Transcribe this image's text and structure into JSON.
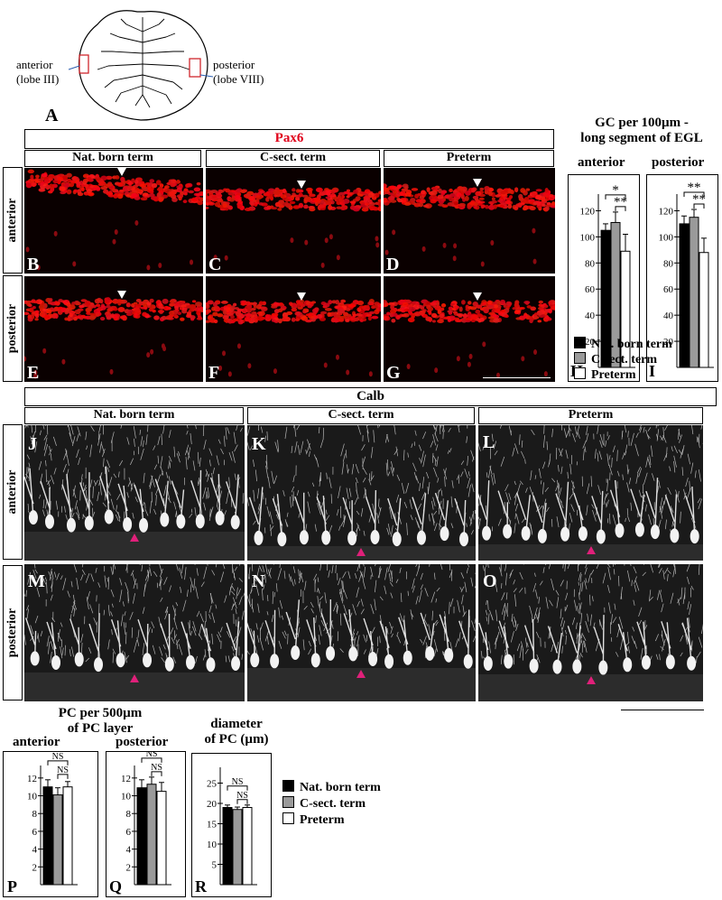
{
  "schematic": {
    "label_anterior_1": "anterior",
    "label_anterior_2": "(lobe III)",
    "label_posterior_1": "posterior",
    "label_posterior_2": "(lobe VIII)",
    "panel": "A"
  },
  "pax6": {
    "header": "Pax6",
    "header_color": "#e0001a",
    "columns": [
      "Nat. born term",
      "C-sect. term",
      "Preterm"
    ],
    "rows": [
      "anterior",
      "posterior"
    ],
    "panels": [
      "B",
      "C",
      "D",
      "E",
      "F",
      "G"
    ]
  },
  "gc_chart": {
    "title_1": "GC per  100µm -",
    "title_2": "long segment of EGL",
    "sub_anterior": "anterior",
    "sub_posterior": "posterior",
    "panels": [
      "H",
      "I"
    ]
  },
  "legend": {
    "items": [
      {
        "label": "Nat. born term",
        "color": "#000000"
      },
      {
        "label": "C-sect. term",
        "color": "#9a9a9a"
      },
      {
        "label": "Preterm",
        "color": "#ffffff"
      }
    ]
  },
  "calb": {
    "header": "Calb",
    "columns": [
      "Nat. born term",
      "C-sect. term",
      "Preterm"
    ],
    "rows": [
      "anterior",
      "posterior"
    ],
    "panels": [
      "J",
      "K",
      "L",
      "M",
      "N",
      "O"
    ]
  },
  "pc_chart": {
    "title_1": "PC per 500µm",
    "title_2": "of PC layer",
    "sub_anterior": "anterior",
    "sub_posterior": "posterior",
    "diam_1": "diameter",
    "diam_2": "of PC  (µm)",
    "panels": [
      "P",
      "Q",
      "R"
    ]
  },
  "chart_data": [
    {
      "type": "bar",
      "panel": "H",
      "title": "anterior",
      "categories": [
        "Nat. born term",
        "C-sect. term",
        "Preterm"
      ],
      "values": [
        105,
        111,
        89
      ],
      "errors": [
        5,
        8,
        13
      ],
      "ylim": [
        0,
        130
      ],
      "yticks": [
        20,
        40,
        60,
        80,
        100,
        120
      ],
      "significance": [
        {
          "pair": [
            0,
            2
          ],
          "label": "*"
        },
        {
          "pair": [
            1,
            2
          ],
          "label": "**"
        }
      ]
    },
    {
      "type": "bar",
      "panel": "I",
      "title": "posterior",
      "categories": [
        "Nat. born term",
        "C-sect. term",
        "Preterm"
      ],
      "values": [
        110,
        115,
        88
      ],
      "errors": [
        6,
        6,
        11
      ],
      "ylim": [
        0,
        130
      ],
      "yticks": [
        20,
        40,
        60,
        80,
        100,
        120
      ],
      "significance": [
        {
          "pair": [
            0,
            2
          ],
          "label": "**"
        },
        {
          "pair": [
            1,
            2
          ],
          "label": "**"
        }
      ]
    },
    {
      "type": "bar",
      "panel": "P",
      "title": "anterior",
      "categories": [
        "Nat. born term",
        "C-sect. term",
        "Preterm"
      ],
      "values": [
        11,
        10.1,
        11
      ],
      "errors": [
        0.8,
        0.8,
        0.6
      ],
      "ylim": [
        0,
        13
      ],
      "yticks": [
        2,
        4,
        6,
        8,
        10,
        12
      ],
      "significance": [
        {
          "pair": [
            0,
            2
          ],
          "label": "NS"
        },
        {
          "pair": [
            1,
            2
          ],
          "label": "NS"
        }
      ]
    },
    {
      "type": "bar",
      "panel": "Q",
      "title": "posterior",
      "categories": [
        "Nat. born term",
        "C-sect. term",
        "Preterm"
      ],
      "values": [
        10.9,
        11.3,
        10.5
      ],
      "errors": [
        0.9,
        0.8,
        1.0
      ],
      "ylim": [
        0,
        13
      ],
      "yticks": [
        2,
        4,
        6,
        8,
        10,
        12
      ],
      "significance": [
        {
          "pair": [
            0,
            2
          ],
          "label": "NS"
        },
        {
          "pair": [
            1,
            2
          ],
          "label": "NS"
        }
      ]
    },
    {
      "type": "bar",
      "panel": "R",
      "title": "diameter of PC (µm)",
      "categories": [
        "Nat. born term",
        "C-sect. term",
        "Preterm"
      ],
      "values": [
        19,
        18.5,
        19
      ],
      "errors": [
        0.6,
        0.6,
        0.6
      ],
      "ylim": [
        0,
        28
      ],
      "yticks": [
        5,
        10,
        15,
        20,
        25
      ],
      "significance": [
        {
          "pair": [
            0,
            2
          ],
          "label": "NS"
        },
        {
          "pair": [
            1,
            2
          ],
          "label": "NS"
        }
      ]
    }
  ]
}
